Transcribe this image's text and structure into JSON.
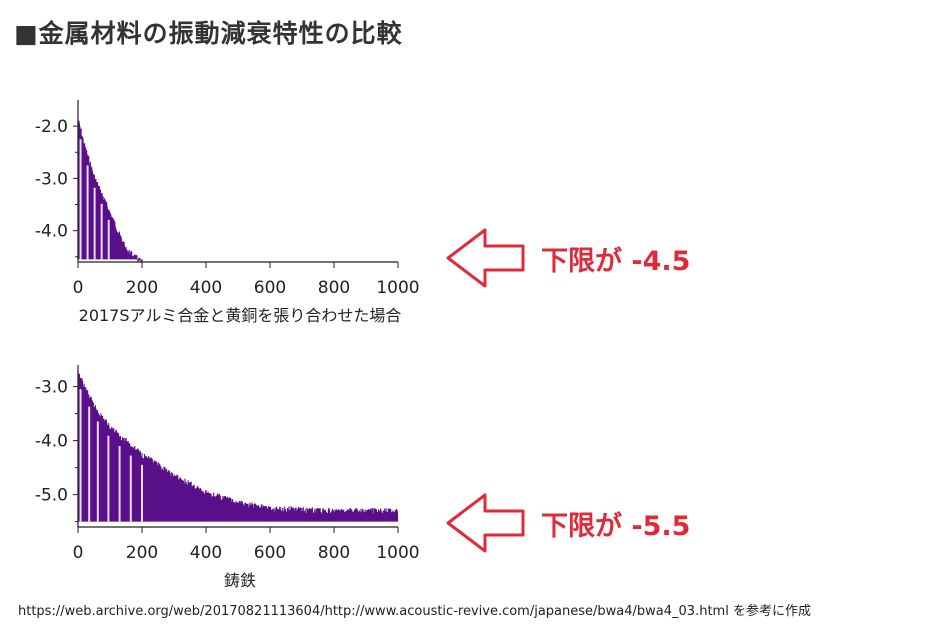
{
  "title": "■金属材料の振動減衰特性の比較",
  "colors": {
    "signal": "#5a0f8a",
    "axis": "#222222",
    "annotation": "#e02a3a"
  },
  "chart_data": [
    {
      "type": "line",
      "xlabel": "2017Sアルミ合金と黄銅を張り合わせた場合",
      "ylabel": "",
      "xlim": [
        0,
        1000
      ],
      "ylim": [
        -4.6,
        -1.5
      ],
      "x_ticks": [
        "0",
        "200",
        "400",
        "600",
        "800",
        "1000"
      ],
      "y_ticks": [
        "-2.0",
        "-3.0",
        "-4.0"
      ],
      "envelope": {
        "x": [
          0,
          20,
          50,
          100,
          150,
          200
        ],
        "y_top": [
          -1.8,
          -2.3,
          -2.9,
          -3.6,
          -4.3,
          -4.55
        ],
        "floor": -4.55
      },
      "annotation": "下限が -4.5"
    },
    {
      "type": "line",
      "xlabel": "鋳鉄",
      "ylabel": "",
      "xlim": [
        0,
        1000
      ],
      "ylim": [
        -5.6,
        -2.6
      ],
      "x_ticks": [
        "0",
        "200",
        "400",
        "600",
        "800",
        "1000"
      ],
      "y_ticks": [
        "-3.0",
        "-4.0",
        "-5.0"
      ],
      "envelope": {
        "x": [
          0,
          50,
          100,
          200,
          300,
          400,
          500,
          600,
          800,
          1000
        ],
        "y_top": [
          -2.7,
          -3.3,
          -3.7,
          -4.2,
          -4.6,
          -4.9,
          -5.1,
          -5.2,
          -5.25,
          -5.25
        ],
        "floor": -5.5
      },
      "annotation": "下限が -5.5"
    }
  ],
  "source": "https://web.archive.org/web/20170821113604/http://www.acoustic-revive.com/japanese/bwa4/bwa4_03.html を参考に作成"
}
